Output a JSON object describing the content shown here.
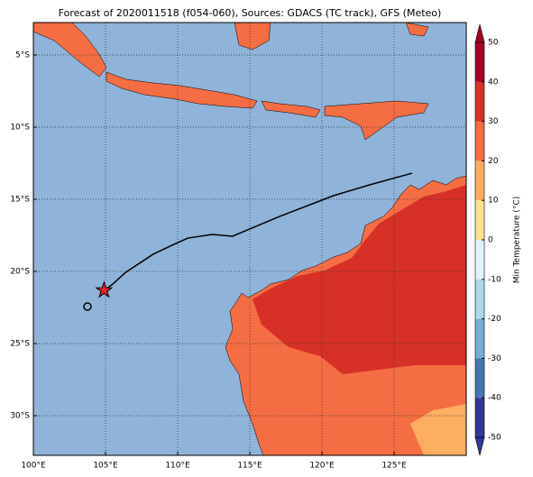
{
  "map": {
    "title": "Forecast of 2020011518 (f054-060), Sources: GDACS (TC track), GFS (Meteo)",
    "xlim": [
      100,
      130
    ],
    "ylim": [
      -32.75,
      -2.75
    ],
    "xticks": [
      {
        "value": 100,
        "label": "100°E"
      },
      {
        "value": 105,
        "label": "105°E"
      },
      {
        "value": 110,
        "label": "110°E"
      },
      {
        "value": 115,
        "label": "115°E"
      },
      {
        "value": 120,
        "label": "120°E"
      },
      {
        "value": 125,
        "label": "125°E"
      }
    ],
    "yticks": [
      {
        "value": -5,
        "label": "5°S"
      },
      {
        "value": -10,
        "label": "10°S"
      },
      {
        "value": -15,
        "label": "15°S"
      },
      {
        "value": -20,
        "label": "20°S"
      },
      {
        "value": -25,
        "label": "25°S"
      },
      {
        "value": -30,
        "label": "30°S"
      }
    ],
    "grid": true,
    "track": {
      "color": "#000000",
      "lon": [
        126.25,
        123.3,
        120.8,
        117.06,
        113.8,
        112.4,
        110.7,
        109.6,
        108.3,
        106.4,
        105.5,
        104.9
      ],
      "lat": [
        -13.19,
        -14.0,
        -14.75,
        -16.19,
        -17.56,
        -17.44,
        -17.69,
        -18.19,
        -18.81,
        -20.06,
        -20.88,
        -21.31
      ]
    },
    "current_position": {
      "lon": 104.9,
      "lat": -21.31,
      "color": "#e8202a"
    },
    "start_position": {
      "lon": 103.75,
      "lat": -22.44
    },
    "colorbar": {
      "label": "Min Temperature (°C)",
      "ticks": [
        -50,
        -40,
        -30,
        -20,
        -10,
        0,
        10,
        20,
        30,
        40,
        50
      ],
      "colors": [
        "#313695",
        "#4575b4",
        "#74add1",
        "#abd9e9",
        "#e0f3f8",
        "#fee090",
        "#fdae61",
        "#f46d43",
        "#d73027",
        "#a50026"
      ]
    }
  }
}
